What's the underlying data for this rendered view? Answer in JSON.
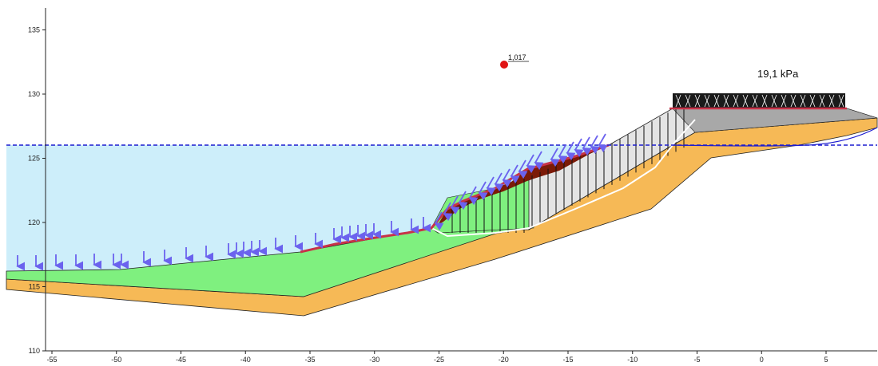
{
  "chart_data": {
    "type": "cross-section",
    "x_ticks": [
      "-55",
      "-50",
      "-45",
      "-40",
      "-35",
      "-30",
      "-25",
      "-20",
      "-15",
      "-10",
      "-5",
      "0",
      "5"
    ],
    "y_ticks": [
      "110",
      "115",
      "120",
      "125",
      "130",
      "135"
    ],
    "xlim": [
      -58,
      10
    ],
    "ylim": [
      110,
      137
    ],
    "grid": false,
    "water_level": 126,
    "surcharge_label": "19,1 kPa",
    "surcharge_value_kpa": 19.1,
    "fos_label": "1,017",
    "fos_center": [
      -19.5,
      132.3
    ]
  },
  "colors": {
    "water": "#cdeefa",
    "water_line": "#1c1ccf",
    "sand": "#f6b956",
    "clay": "#7ff07f",
    "fill_gray": "#c8c8c8",
    "fill_light": "#e4e4e4",
    "slip_mass": "#7b1a08",
    "slip_line": "#c83248",
    "arrow": "#6b62ee",
    "marker": "#e01515"
  }
}
